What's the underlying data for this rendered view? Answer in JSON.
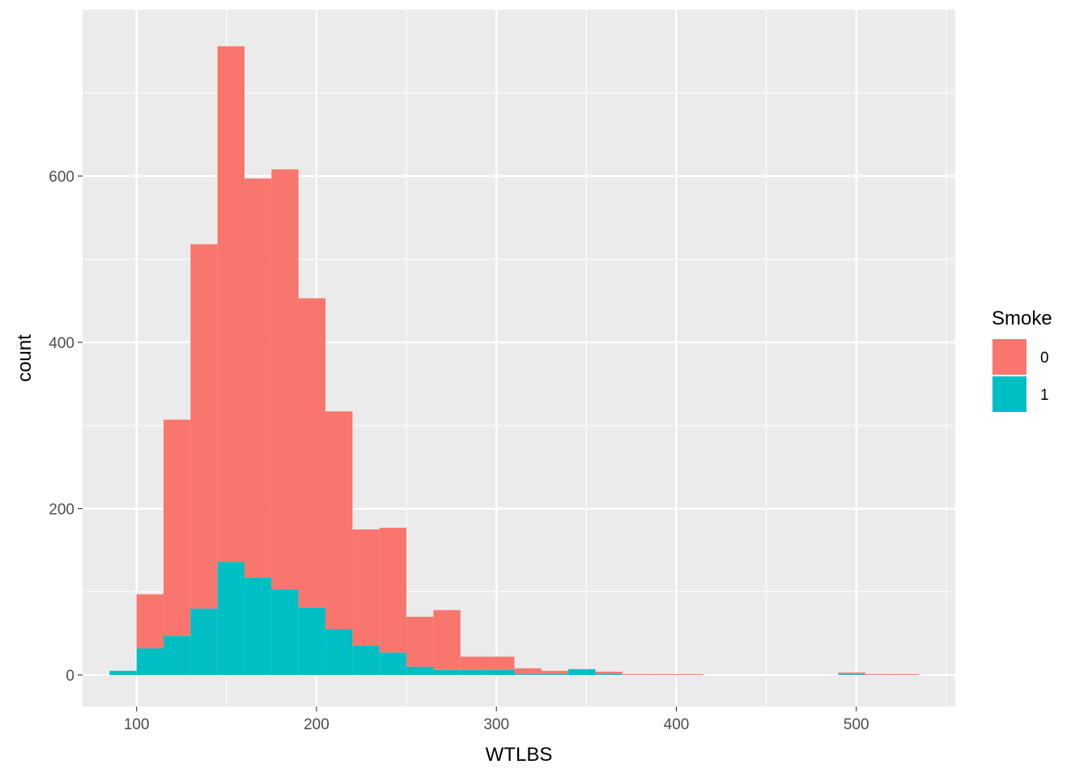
{
  "chart_data": {
    "type": "bar",
    "stacked": true,
    "xlabel": "WTLBS",
    "ylabel": "count",
    "xlim": [
      70,
      555
    ],
    "ylim": [
      -38,
      800
    ],
    "x_ticks": [
      100,
      200,
      300,
      400,
      500
    ],
    "y_ticks": [
      0,
      200,
      400,
      600
    ],
    "grid": true,
    "legend_position": "right",
    "bin_width": 15,
    "bin_starts": [
      85,
      100,
      115,
      130,
      145,
      160,
      175,
      190,
      205,
      220,
      235,
      250,
      265,
      280,
      295,
      310,
      325,
      340,
      355,
      370,
      385,
      400,
      415,
      430,
      445,
      460,
      475,
      490,
      505,
      520,
      535
    ],
    "legend": {
      "title": "Smoke",
      "entries": [
        {
          "label": "0",
          "color": "#F8766D"
        },
        {
          "label": "1",
          "color": "#00BFC4"
        }
      ]
    },
    "series": [
      {
        "name": "0",
        "color": "#F8766D",
        "values": [
          0,
          65,
          260,
          438,
          620,
          480,
          505,
          372,
          262,
          140,
          150,
          60,
          72,
          16,
          16,
          7,
          4,
          0,
          3,
          1,
          1,
          1,
          0,
          0,
          0,
          0,
          0,
          2,
          1,
          1,
          0
        ]
      },
      {
        "name": "1",
        "color": "#00BFC4",
        "values": [
          5,
          32,
          47,
          80,
          136,
          117,
          103,
          81,
          55,
          35,
          27,
          10,
          6,
          6,
          6,
          1,
          1,
          7,
          1,
          0,
          0,
          0,
          0,
          0,
          0,
          0,
          0,
          1,
          0,
          0,
          0
        ]
      }
    ]
  }
}
